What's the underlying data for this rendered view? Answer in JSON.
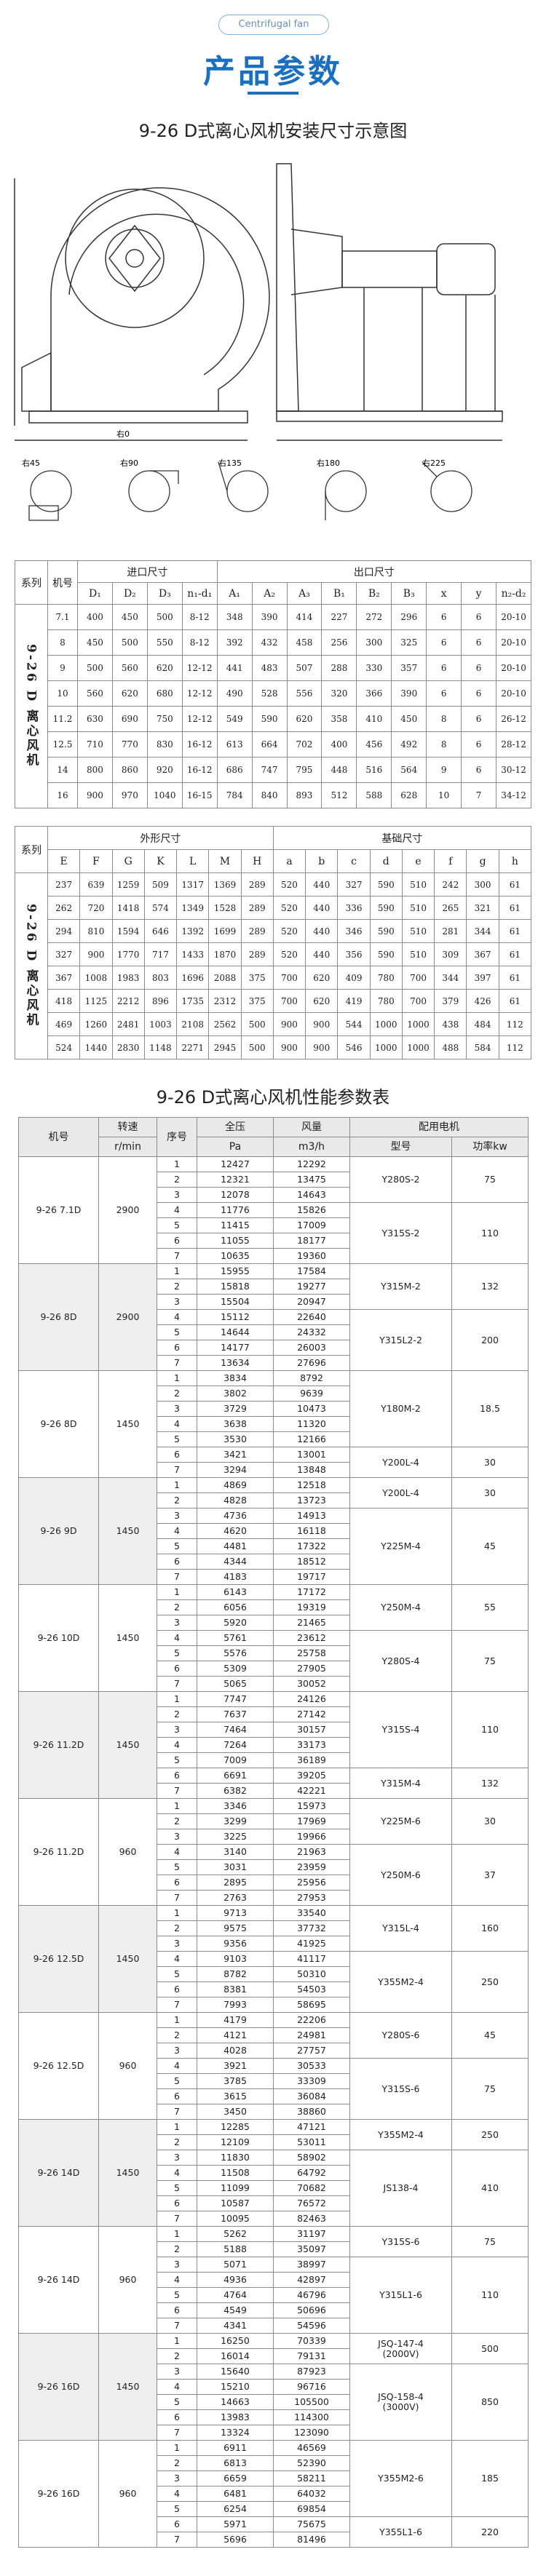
{
  "header": {
    "tag": "Centrifugal fan",
    "title": "产品参数"
  },
  "diagram": {
    "title": "9-26 D式离心风机安装尺寸示意图",
    "views": [
      "右45",
      "右90",
      "右135",
      "右180",
      "右225"
    ],
    "center_label": "右0"
  },
  "install_table": {
    "series_head": "系列",
    "machine_head": "机号",
    "inlet_head": "进口尺寸",
    "outlet_head": "出口尺寸",
    "inlet_cols": [
      "D₁",
      "D₂",
      "D₃",
      "n₁-d₁"
    ],
    "outlet_cols": [
      "A₁",
      "A₂",
      "A₃",
      "B₁",
      "B₂",
      "B₃",
      "x",
      "y",
      "n₂-d₂"
    ],
    "series": "9-26 D 离心风机",
    "rows": [
      [
        "7.1",
        400,
        450,
        500,
        "8-12",
        348,
        390,
        414,
        227,
        272,
        296,
        6,
        6,
        "20-10"
      ],
      [
        "8",
        450,
        500,
        550,
        "8-12",
        392,
        432,
        458,
        256,
        300,
        325,
        6,
        6,
        "20-10"
      ],
      [
        "9",
        500,
        560,
        620,
        "12-12",
        441,
        483,
        507,
        288,
        330,
        357,
        6,
        6,
        "20-10"
      ],
      [
        "10",
        560,
        620,
        680,
        "12-12",
        490,
        528,
        556,
        320,
        366,
        390,
        6,
        6,
        "20-10"
      ],
      [
        "11.2",
        630,
        690,
        750,
        "12-12",
        549,
        590,
        620,
        358,
        410,
        450,
        8,
        6,
        "26-12"
      ],
      [
        "12.5",
        710,
        770,
        830,
        "16-12",
        613,
        664,
        702,
        400,
        456,
        492,
        8,
        6,
        "28-12"
      ],
      [
        "14",
        800,
        860,
        920,
        "16-12",
        686,
        747,
        795,
        448,
        516,
        564,
        9,
        6,
        "30-12"
      ],
      [
        "16",
        900,
        970,
        1040,
        "16-15",
        784,
        840,
        893,
        512,
        588,
        628,
        10,
        7,
        "34-12"
      ]
    ]
  },
  "outline_table": {
    "series_head": "系列",
    "outline_head": "外形尺寸",
    "base_head": "基础尺寸",
    "outline_cols": [
      "E",
      "F",
      "G",
      "K",
      "L",
      "M",
      "H"
    ],
    "base_cols": [
      "a",
      "b",
      "c",
      "d",
      "e",
      "f",
      "g",
      "h"
    ],
    "series": "9-26 D 离心风机",
    "rows": [
      [
        237,
        639,
        1259,
        509,
        1317,
        1369,
        289,
        520,
        440,
        327,
        590,
        510,
        242,
        300,
        61
      ],
      [
        262,
        720,
        1418,
        574,
        1349,
        1528,
        289,
        520,
        440,
        336,
        590,
        510,
        265,
        321,
        61
      ],
      [
        294,
        810,
        1594,
        646,
        1392,
        1699,
        289,
        520,
        440,
        346,
        590,
        510,
        281,
        344,
        61
      ],
      [
        327,
        900,
        1770,
        717,
        1433,
        1870,
        289,
        520,
        440,
        356,
        590,
        510,
        309,
        367,
        61
      ],
      [
        367,
        1008,
        1983,
        803,
        1696,
        2088,
        375,
        700,
        620,
        409,
        780,
        700,
        344,
        397,
        61
      ],
      [
        418,
        1125,
        2212,
        896,
        1735,
        2312,
        375,
        700,
        620,
        419,
        780,
        700,
        379,
        426,
        61
      ],
      [
        469,
        1260,
        2481,
        1003,
        2108,
        2562,
        500,
        900,
        900,
        544,
        1000,
        1000,
        438,
        484,
        112
      ],
      [
        524,
        1440,
        2830,
        1148,
        2271,
        2945,
        500,
        900,
        900,
        546,
        1000,
        1000,
        488,
        584,
        112
      ]
    ]
  },
  "perf_table": {
    "title": "9-26 D式离心风机性能参数表",
    "headers": {
      "model": "机号",
      "speed": "转速",
      "speed_unit": "r/min",
      "seq": "序号",
      "pressure": "全压",
      "pressure_unit": "Pa",
      "flow": "风量",
      "flow_unit": "m3/h",
      "motor": "配用电机",
      "motor_model": "型号",
      "motor_power": "功率kw"
    },
    "groups": [
      {
        "model": "9-26 7.1D",
        "speed": 2900,
        "rows": [
          [
            1,
            12427,
            12292
          ],
          [
            2,
            12321,
            13475
          ],
          [
            3,
            12078,
            14643
          ],
          [
            4,
            11776,
            15826
          ],
          [
            5,
            11415,
            17009
          ],
          [
            6,
            11055,
            18177
          ],
          [
            7,
            10635,
            19360
          ]
        ],
        "motors": [
          [
            "Y280S-2",
            75
          ],
          [
            "Y315S-2",
            110
          ]
        ]
      },
      {
        "model": "9-26 8D",
        "speed": 2900,
        "rows": [
          [
            1,
            15955,
            17584
          ],
          [
            2,
            15818,
            19277
          ],
          [
            3,
            15504,
            20947
          ],
          [
            4,
            15112,
            22640
          ],
          [
            5,
            14644,
            24332
          ],
          [
            6,
            14177,
            26003
          ],
          [
            7,
            13634,
            27696
          ]
        ],
        "motors": [
          [
            "Y315M-2",
            132
          ],
          [
            "Y315L2-2",
            200
          ]
        ]
      },
      {
        "model": "9-26 8D",
        "speed": 1450,
        "rows": [
          [
            1,
            3834,
            8792
          ],
          [
            2,
            3802,
            9639
          ],
          [
            3,
            3729,
            10473
          ],
          [
            4,
            3638,
            11320
          ],
          [
            5,
            3530,
            12166
          ],
          [
            6,
            3421,
            13001
          ],
          [
            7,
            3294,
            13848
          ]
        ],
        "motors": [
          [
            "Y180M-2",
            18.5
          ],
          [
            "Y200L-4",
            30
          ]
        ]
      },
      {
        "model": "9-26 9D",
        "speed": 1450,
        "rows": [
          [
            1,
            4869,
            12518
          ],
          [
            2,
            4828,
            13723
          ],
          [
            3,
            4736,
            14913
          ],
          [
            4,
            4620,
            16118
          ],
          [
            5,
            4481,
            17322
          ],
          [
            6,
            4344,
            18512
          ],
          [
            7,
            4183,
            19717
          ]
        ],
        "motors": [
          [
            "Y200L-4",
            30
          ],
          [
            "Y225M-4",
            45
          ]
        ]
      },
      {
        "model": "9-26 10D",
        "speed": 1450,
        "rows": [
          [
            1,
            6143,
            17172
          ],
          [
            2,
            6056,
            19319
          ],
          [
            3,
            5920,
            21465
          ],
          [
            4,
            5761,
            23612
          ],
          [
            5,
            5576,
            25758
          ],
          [
            6,
            5309,
            27905
          ],
          [
            7,
            5065,
            30052
          ]
        ],
        "motors": [
          [
            "Y250M-4",
            55
          ],
          [
            "Y280S-4",
            75
          ]
        ]
      },
      {
        "model": "9-26 11.2D",
        "speed": 1450,
        "rows": [
          [
            1,
            7747,
            24126
          ],
          [
            2,
            7637,
            27142
          ],
          [
            3,
            7464,
            30157
          ],
          [
            4,
            7264,
            33173
          ],
          [
            5,
            7009,
            36189
          ],
          [
            6,
            6691,
            39205
          ],
          [
            7,
            6382,
            42221
          ]
        ],
        "motors": [
          [
            "Y315S-4",
            110
          ],
          [
            "Y315M-4",
            132
          ]
        ]
      },
      {
        "model": "9-26 11.2D",
        "speed": 960,
        "rows": [
          [
            1,
            3346,
            15973
          ],
          [
            2,
            3299,
            17969
          ],
          [
            3,
            3225,
            19966
          ],
          [
            4,
            3140,
            21963
          ],
          [
            5,
            3031,
            23959
          ],
          [
            6,
            2895,
            25956
          ],
          [
            7,
            2763,
            27953
          ]
        ],
        "motors": [
          [
            "Y225M-6",
            30
          ],
          [
            "Y250M-6",
            37
          ]
        ]
      },
      {
        "model": "9-26 12.5D",
        "speed": 1450,
        "rows": [
          [
            1,
            9713,
            33540
          ],
          [
            2,
            9575,
            37732
          ],
          [
            3,
            9356,
            41925
          ],
          [
            4,
            9103,
            41117
          ],
          [
            5,
            8782,
            50310
          ],
          [
            6,
            8381,
            54503
          ],
          [
            7,
            7993,
            58695
          ]
        ],
        "motors": [
          [
            "Y315L-4",
            160
          ],
          [
            "Y355M2-4",
            250
          ]
        ]
      },
      {
        "model": "9-26 12.5D",
        "speed": 960,
        "rows": [
          [
            1,
            4179,
            22206
          ],
          [
            2,
            4121,
            24981
          ],
          [
            3,
            4028,
            27757
          ],
          [
            4,
            3921,
            30533
          ],
          [
            5,
            3785,
            33309
          ],
          [
            6,
            3615,
            36084
          ],
          [
            7,
            3450,
            38860
          ]
        ],
        "motors": [
          [
            "Y280S-6",
            45
          ],
          [
            "Y315S-6",
            75
          ]
        ]
      },
      {
        "model": "9-26 14D",
        "speed": 1450,
        "rows": [
          [
            1,
            12285,
            47121
          ],
          [
            2,
            12109,
            53011
          ],
          [
            3,
            11830,
            58902
          ],
          [
            4,
            11508,
            64792
          ],
          [
            5,
            11099,
            70682
          ],
          [
            6,
            10587,
            76572
          ],
          [
            7,
            10095,
            82463
          ]
        ],
        "motors": [
          [
            "Y355M2-4",
            250
          ],
          [
            "JS138-4",
            410
          ]
        ]
      },
      {
        "model": "9-26 14D",
        "speed": 960,
        "rows": [
          [
            1,
            5262,
            31197
          ],
          [
            2,
            5188,
            35097
          ],
          [
            3,
            5071,
            38997
          ],
          [
            4,
            4936,
            42897
          ],
          [
            5,
            4764,
            46796
          ],
          [
            6,
            4549,
            50696
          ],
          [
            7,
            4341,
            54596
          ]
        ],
        "motors": [
          [
            "Y315S-6",
            75
          ],
          [
            "Y315L1-6",
            110
          ]
        ]
      },
      {
        "model": "9-26 16D",
        "speed": 1450,
        "rows": [
          [
            1,
            16250,
            70339
          ],
          [
            2,
            16014,
            79131
          ],
          [
            3,
            15640,
            87923
          ],
          [
            4,
            15210,
            96716
          ],
          [
            5,
            14663,
            105500
          ],
          [
            6,
            13983,
            114300
          ],
          [
            7,
            13324,
            123090
          ]
        ],
        "motors": [
          [
            "JSQ-147-4\n(2000V)",
            500
          ],
          [
            "JSQ-158-4\n(3000V)",
            850
          ]
        ]
      },
      {
        "model": "9-26 16D",
        "speed": 960,
        "rows": [
          [
            1,
            6911,
            46569
          ],
          [
            2,
            6813,
            52390
          ],
          [
            3,
            6659,
            58211
          ],
          [
            4,
            6481,
            64032
          ],
          [
            5,
            6254,
            69854
          ],
          [
            6,
            5971,
            75675
          ],
          [
            7,
            5696,
            81496
          ]
        ],
        "motors": [
          [
            "Y355M2-6",
            185
          ],
          [
            "Y355L1-6",
            220
          ]
        ]
      }
    ]
  }
}
